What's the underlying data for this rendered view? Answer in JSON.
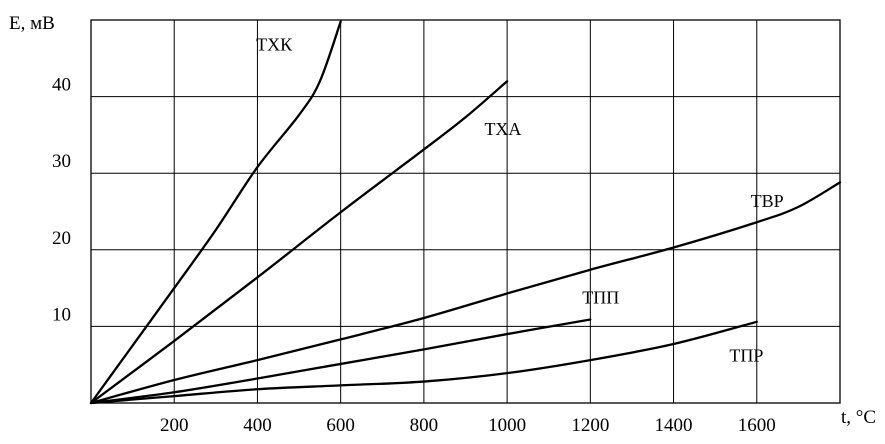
{
  "chart_data": {
    "type": "line",
    "xlabel": "t, °C",
    "ylabel": "E, мВ",
    "xlim": [
      0,
      1800
    ],
    "ylim": [
      0,
      50
    ],
    "x_ticks": [
      200,
      400,
      600,
      800,
      1000,
      1200,
      1400,
      1600
    ],
    "x_tick_labels": [
      "200",
      "400",
      "600",
      "800",
      "1000",
      "1200",
      "1400",
      "1600"
    ],
    "y_ticks": [
      10,
      20,
      30,
      40
    ],
    "y_tick_labels": [
      "10",
      "20",
      "30",
      "40"
    ],
    "grid": true,
    "legend": "none",
    "series": [
      {
        "name": "ТХК",
        "label_at": [
          440,
          46
        ],
        "points": [
          [
            0,
            0
          ],
          [
            100,
            7.5
          ],
          [
            200,
            15
          ],
          [
            300,
            22.6
          ],
          [
            400,
            30.8
          ],
          [
            500,
            37.6
          ],
          [
            550,
            42
          ],
          [
            600,
            49.8
          ]
        ]
      },
      {
        "name": "ТХА",
        "label_at": [
          990,
          35
        ],
        "points": [
          [
            0,
            0
          ],
          [
            200,
            8.1
          ],
          [
            400,
            16.4
          ],
          [
            600,
            24.9
          ],
          [
            800,
            33.1
          ],
          [
            900,
            37.3
          ],
          [
            1000,
            42
          ]
        ]
      },
      {
        "name": "ТВР",
        "label_at": [
          1625,
          25.6
        ],
        "points": [
          [
            0,
            0
          ],
          [
            200,
            3
          ],
          [
            400,
            5.6
          ],
          [
            600,
            8.3
          ],
          [
            800,
            11.1
          ],
          [
            1000,
            14.3
          ],
          [
            1200,
            17.4
          ],
          [
            1400,
            20.3
          ],
          [
            1600,
            23.6
          ],
          [
            1700,
            25.6
          ],
          [
            1800,
            28.8
          ]
        ]
      },
      {
        "name": "ТПП",
        "label_at": [
          1225,
          13
        ],
        "points": [
          [
            0,
            0
          ],
          [
            200,
            1.4
          ],
          [
            400,
            3.2
          ],
          [
            600,
            5.1
          ],
          [
            800,
            7
          ],
          [
            1000,
            9
          ],
          [
            1200,
            10.9
          ]
        ]
      },
      {
        "name": "ТПР",
        "label_at": [
          1575,
          5.4
        ],
        "points": [
          [
            0,
            0
          ],
          [
            200,
            0.9
          ],
          [
            400,
            1.8
          ],
          [
            600,
            2.3
          ],
          [
            800,
            2.8
          ],
          [
            1000,
            3.9
          ],
          [
            1200,
            5.6
          ],
          [
            1400,
            7.7
          ],
          [
            1600,
            10.6
          ]
        ]
      }
    ]
  }
}
